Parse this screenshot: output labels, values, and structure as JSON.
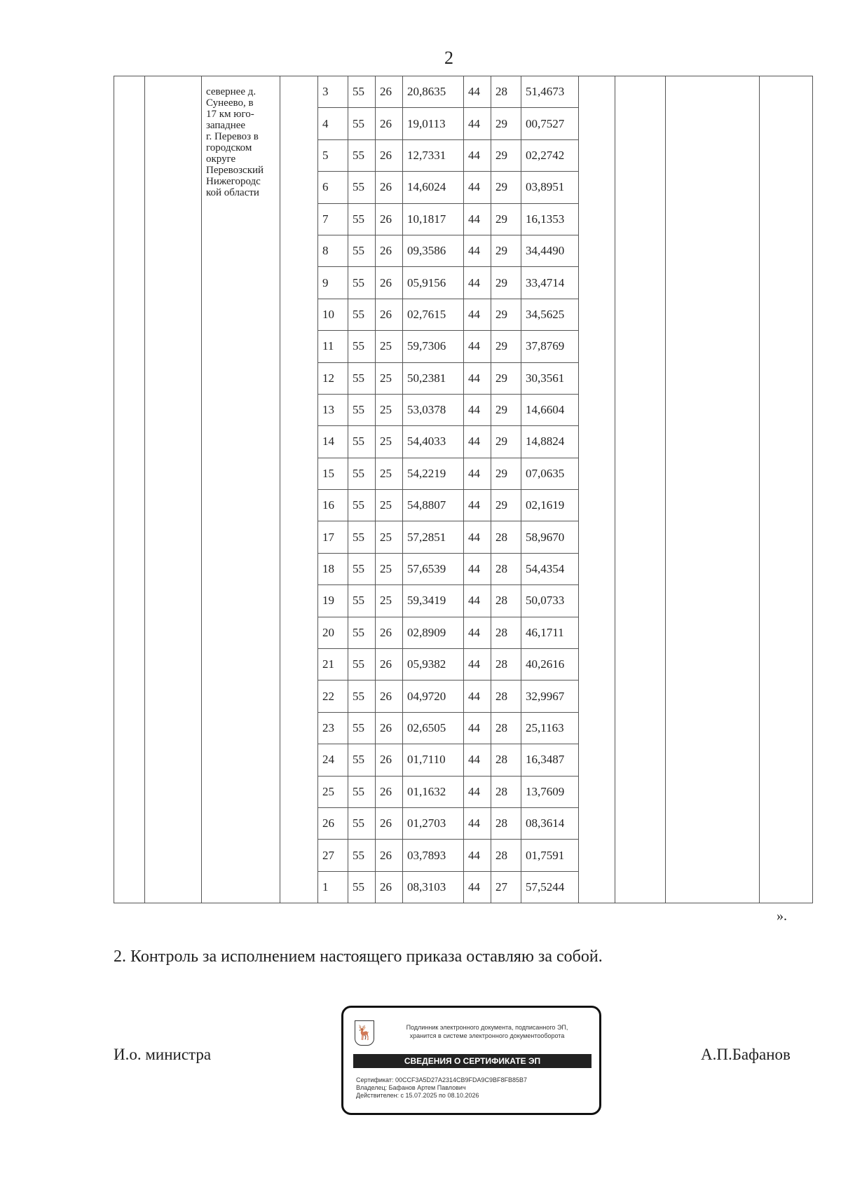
{
  "page_number": "2",
  "table": {
    "location_text": "севернее д. Сунеево, в 17 км юго-западнее г. Перевоз в городском округе Перевозский Нижегородской области",
    "location_lines": [
      "севернее д.",
      "Сунеево, в",
      "17 км юго-",
      "западнее",
      " г. Перевоз в",
      "городском",
      "округе",
      "Перевозский",
      "Нижегородс",
      "кой области"
    ],
    "rows": [
      [
        "3",
        "55",
        "26",
        "20,8635",
        "44",
        "28",
        "51,4673"
      ],
      [
        "4",
        "55",
        "26",
        "19,0113",
        "44",
        "29",
        "00,7527"
      ],
      [
        "5",
        "55",
        "26",
        "12,7331",
        "44",
        "29",
        "02,2742"
      ],
      [
        "6",
        "55",
        "26",
        "14,6024",
        "44",
        "29",
        "03,8951"
      ],
      [
        "7",
        "55",
        "26",
        "10,1817",
        "44",
        "29",
        "16,1353"
      ],
      [
        "8",
        "55",
        "26",
        "09,3586",
        "44",
        "29",
        "34,4490"
      ],
      [
        "9",
        "55",
        "26",
        "05,9156",
        "44",
        "29",
        "33,4714"
      ],
      [
        "10",
        "55",
        "26",
        "02,7615",
        "44",
        "29",
        "34,5625"
      ],
      [
        "11",
        "55",
        "25",
        "59,7306",
        "44",
        "29",
        "37,8769"
      ],
      [
        "12",
        "55",
        "25",
        "50,2381",
        "44",
        "29",
        "30,3561"
      ],
      [
        "13",
        "55",
        "25",
        "53,0378",
        "44",
        "29",
        "14,6604"
      ],
      [
        "14",
        "55",
        "25",
        "54,4033",
        "44",
        "29",
        "14,8824"
      ],
      [
        "15",
        "55",
        "25",
        "54,2219",
        "44",
        "29",
        "07,0635"
      ],
      [
        "16",
        "55",
        "25",
        "54,8807",
        "44",
        "29",
        "02,1619"
      ],
      [
        "17",
        "55",
        "25",
        "57,2851",
        "44",
        "28",
        "58,9670"
      ],
      [
        "18",
        "55",
        "25",
        "57,6539",
        "44",
        "28",
        "54,4354"
      ],
      [
        "19",
        "55",
        "25",
        "59,3419",
        "44",
        "28",
        "50,0733"
      ],
      [
        "20",
        "55",
        "26",
        "02,8909",
        "44",
        "28",
        "46,1711"
      ],
      [
        "21",
        "55",
        "26",
        "05,9382",
        "44",
        "28",
        "40,2616"
      ],
      [
        "22",
        "55",
        "26",
        "04,9720",
        "44",
        "28",
        "32,9967"
      ],
      [
        "23",
        "55",
        "26",
        "02,6505",
        "44",
        "28",
        "25,1163"
      ],
      [
        "24",
        "55",
        "26",
        "01,7110",
        "44",
        "28",
        "16,3487"
      ],
      [
        "25",
        "55",
        "26",
        "01,1632",
        "44",
        "28",
        "13,7609"
      ],
      [
        "26",
        "55",
        "26",
        "01,2703",
        "44",
        "28",
        "08,3614"
      ],
      [
        "27",
        "55",
        "26",
        "03,7893",
        "44",
        "28",
        "01,7591"
      ],
      [
        "1",
        "55",
        "26",
        "08,3103",
        "44",
        "27",
        "57,5244"
      ]
    ]
  },
  "closing_quote": "».",
  "paragraph_2": "2. Контроль за исполнением настоящего приказа оставляю за собой.",
  "signature": {
    "position": "И.о. министра",
    "name": "А.П.Бафанов"
  },
  "stamp": {
    "line1": "Подлинник электронного документа, подписанного ЭП,",
    "line2": "хранится в системе электронного документооборота",
    "band": "СВЕДЕНИЯ О СЕРТИФИКАТЕ ЭП",
    "certificate": "Сертификат: 00CCF3A5D27A2314CB9FDA9C9BF8FB85B7",
    "owner": "Владелец: Бафанов Артем Павлович",
    "valid": "Действителен: с 15.07.2025 по 08.10.2026",
    "emblem": "deer-crest-icon"
  }
}
